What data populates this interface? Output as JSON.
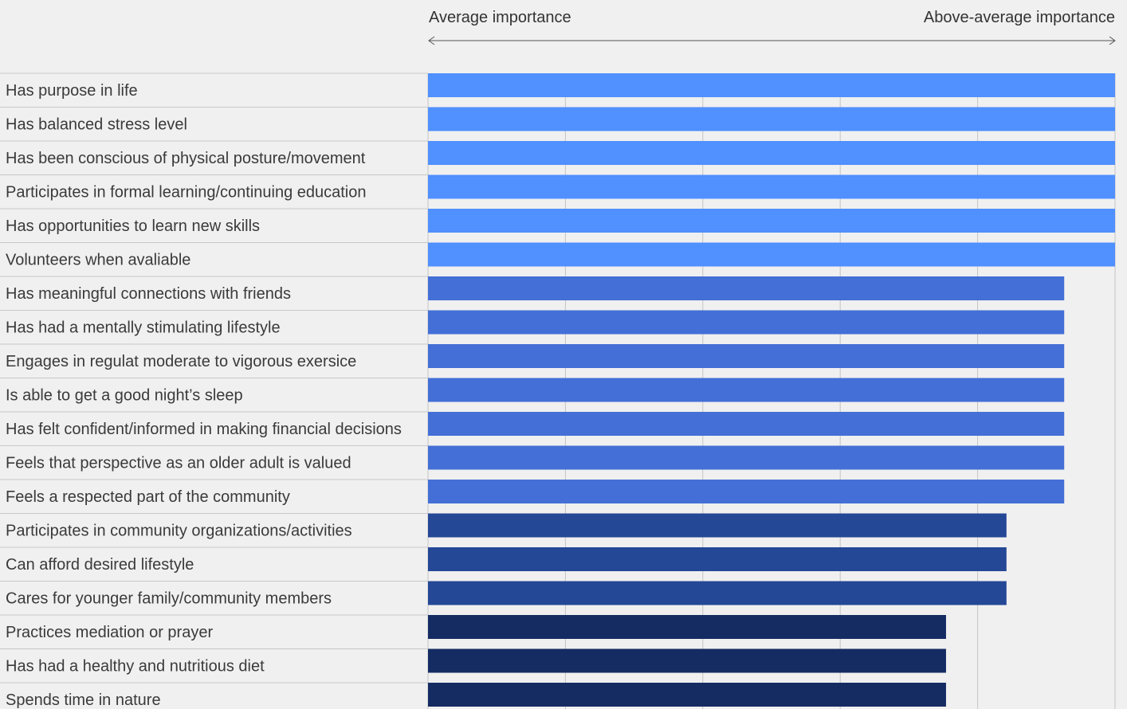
{
  "header": {
    "left_label": "Average importance",
    "right_label": "Above-average importance"
  },
  "chart_data": {
    "type": "bar",
    "orientation": "horizontal",
    "title": "",
    "xlabel": "",
    "ylabel": "",
    "xlim": [
      0,
      5
    ],
    "grid": true,
    "legend": "none",
    "categories": [
      "Has purpose in life",
      "Has balanced stress level",
      "Has been conscious of physical posture/movement",
      "Participates in formal learning/continuing education",
      "Has opportunities to learn new skills",
      "Volunteers when avaliable",
      "Has meaningful connections with friends",
      "Has had a mentally stimulating lifestyle",
      "Engages in regulat moderate to vigorous exersice",
      "Is able to get a good night’s sleep",
      "Has felt confident/informed in making financial decisions",
      "Feels that perspective as an older adult is valued",
      "Feels a respected part of the community",
      "Participates in community organizations/activities",
      "Can afford desired lifestyle",
      "Cares for younger family/community members",
      "Practices mediation or prayer",
      "Has had a healthy and nutritious diet",
      "Spends time in nature"
    ],
    "values": [
      5,
      5,
      5,
      5,
      5,
      5,
      4.63,
      4.63,
      4.63,
      4.63,
      4.63,
      4.63,
      4.63,
      4.21,
      4.21,
      4.21,
      3.77,
      3.77,
      3.77
    ],
    "colors": [
      "#5090ff",
      "#5090ff",
      "#5090ff",
      "#5090ff",
      "#5090ff",
      "#5090ff",
      "#436fd6",
      "#436fd6",
      "#436fd6",
      "#436fd6",
      "#436fd6",
      "#436fd6",
      "#436fd6",
      "#244896",
      "#244896",
      "#244896",
      "#142c62",
      "#142c62",
      "#142c62"
    ]
  }
}
